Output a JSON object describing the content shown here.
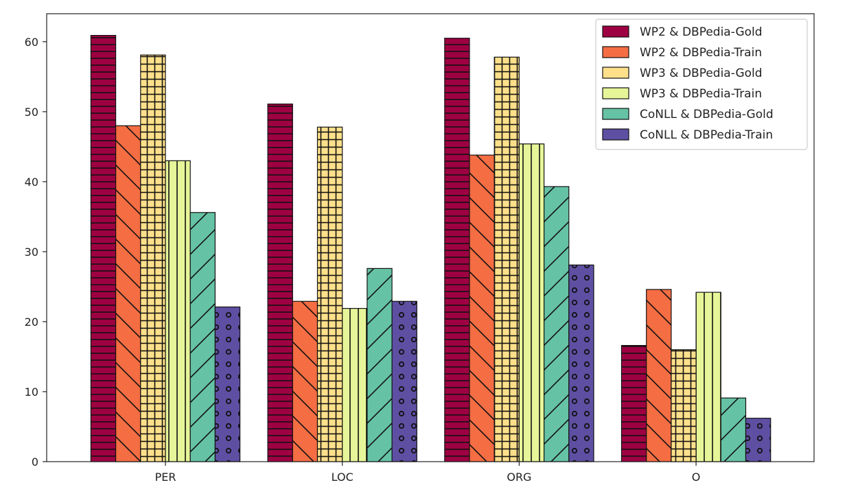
{
  "chart_data": {
    "type": "bar",
    "title": "",
    "xlabel": "",
    "ylabel": "",
    "categories": [
      "PER",
      "LOC",
      "ORG",
      "O"
    ],
    "ylim": [
      0,
      64
    ],
    "yticks": [
      0,
      10,
      20,
      30,
      40,
      50,
      60
    ],
    "grid": false,
    "legend_position": "top-right",
    "series": [
      {
        "name": "WP2 & DBPedia-Gold",
        "values": [
          60.9,
          51.1,
          60.5,
          16.6
        ],
        "color": "#9e0142",
        "hatch": "horizontal"
      },
      {
        "name": "WP2 & DBPedia-Train",
        "values": [
          48.0,
          22.9,
          43.8,
          24.6
        ],
        "color": "#f46d43",
        "hatch": "backslash"
      },
      {
        "name": "WP3 & DBPedia-Gold",
        "values": [
          58.1,
          47.8,
          57.8,
          16.0
        ],
        "color": "#fee08b",
        "hatch": "grid"
      },
      {
        "name": "WP3 & DBPedia-Train",
        "values": [
          43.0,
          21.9,
          45.4,
          24.2
        ],
        "color": "#e6f598",
        "hatch": "vertical"
      },
      {
        "name": "CoNLL & DBPedia-Gold",
        "values": [
          35.6,
          27.6,
          39.3,
          9.1
        ],
        "color": "#66c2a5",
        "hatch": "slash"
      },
      {
        "name": "CoNLL & DBPedia-Train",
        "values": [
          22.1,
          22.9,
          28.1,
          6.2
        ],
        "color": "#5e4fa2",
        "hatch": "circles"
      }
    ]
  }
}
